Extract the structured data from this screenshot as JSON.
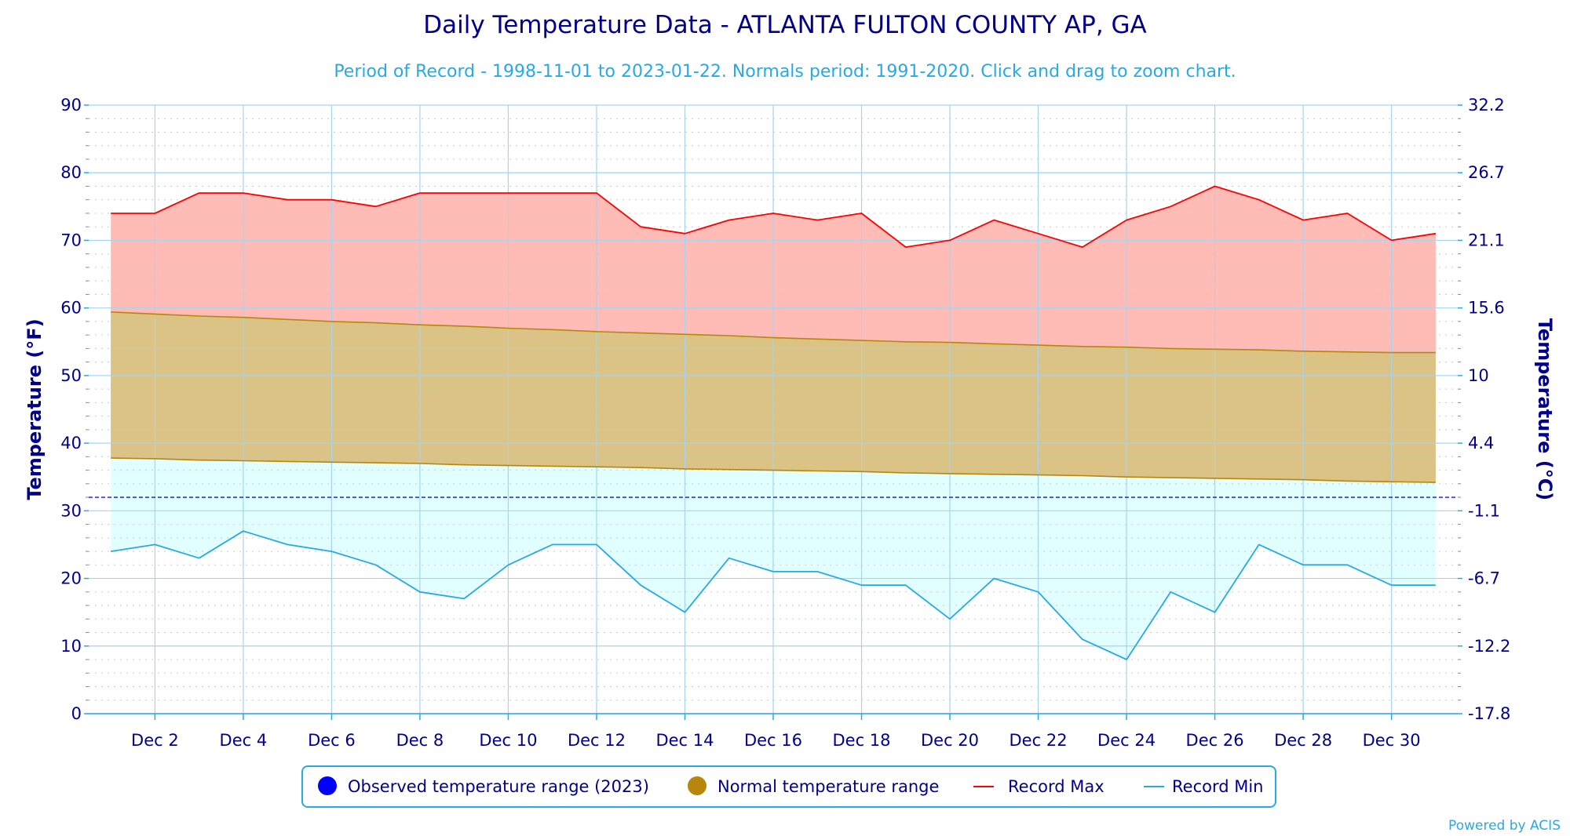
{
  "chart_data": {
    "type": "area",
    "title": "Daily Temperature Data - ATLANTA FULTON COUNTY AP, GA",
    "subtitle": "Period of Record - 1998-11-01 to 2023-01-22. Normals period: 1991-2020. Click and drag to zoom chart.",
    "ylabel": "Temperature (°F)",
    "y2label": "Temperature (°C)",
    "ylim": [
      0,
      90
    ],
    "yticks": [
      "0",
      "10",
      "20",
      "30",
      "40",
      "50",
      "60",
      "70",
      "80",
      "90"
    ],
    "y2ticks": [
      "-17.8",
      "-12.2",
      "-6.7",
      "-1.1",
      "4.4",
      "10",
      "15.6",
      "21.1",
      "26.7",
      "32.2"
    ],
    "x_days": [
      1,
      2,
      3,
      4,
      5,
      6,
      7,
      8,
      9,
      10,
      11,
      12,
      13,
      14,
      15,
      16,
      17,
      18,
      19,
      20,
      21,
      22,
      23,
      24,
      25,
      26,
      27,
      28,
      29,
      30,
      31
    ],
    "xticks": [
      "Dec 2",
      "Dec 4",
      "Dec 6",
      "Dec 8",
      "Dec 10",
      "Dec 12",
      "Dec 14",
      "Dec 16",
      "Dec 18",
      "Dec 20",
      "Dec 22",
      "Dec 24",
      "Dec 26",
      "Dec 28",
      "Dec 30"
    ],
    "freezing_line": 32,
    "grid": true,
    "legend_position": "bottom-center",
    "series": [
      {
        "name": "Record Max",
        "color": "#ff0000",
        "fill": "#ffbbb6",
        "values": [
          74,
          74,
          77,
          77,
          76,
          76,
          75,
          77,
          77,
          77,
          77,
          77,
          72,
          71,
          73,
          74,
          73,
          74,
          69,
          70,
          73,
          71,
          69,
          73,
          75,
          78,
          76,
          73,
          74,
          70,
          71
        ]
      },
      {
        "name": "Normal High",
        "color": "#b8860b",
        "fill": "#dbc385",
        "values": [
          59.4,
          59.1,
          58.8,
          58.6,
          58.3,
          58.0,
          57.8,
          57.5,
          57.3,
          57.0,
          56.8,
          56.5,
          56.3,
          56.1,
          55.9,
          55.6,
          55.4,
          55.2,
          55.0,
          54.9,
          54.7,
          54.5,
          54.3,
          54.2,
          54.0,
          53.9,
          53.8,
          53.6,
          53.5,
          53.4,
          53.4
        ]
      },
      {
        "name": "Normal Low",
        "color": "#b8860b",
        "values": [
          37.8,
          37.7,
          37.5,
          37.4,
          37.3,
          37.2,
          37.1,
          37.0,
          36.8,
          36.7,
          36.6,
          36.5,
          36.4,
          36.2,
          36.1,
          36.0,
          35.9,
          35.8,
          35.6,
          35.5,
          35.4,
          35.3,
          35.2,
          35.0,
          34.9,
          34.8,
          34.7,
          34.6,
          34.4,
          34.3,
          34.2
        ]
      },
      {
        "name": "Record Min",
        "color": "#29a9e3",
        "fill": "#e1ffff",
        "values": [
          24,
          25,
          23,
          27,
          25,
          24,
          22,
          18,
          17,
          22,
          25,
          25,
          19,
          15,
          23,
          21,
          21,
          19,
          19,
          14,
          20,
          18,
          11,
          8,
          18,
          15,
          25,
          22,
          22,
          19,
          19
        ]
      }
    ],
    "legend": [
      {
        "label": "Observed temperature range (2023)",
        "symbol": "dot",
        "color": "#0000ff"
      },
      {
        "label": "Normal temperature range",
        "symbol": "dot",
        "color": "#b8860b"
      },
      {
        "label": "Record Max",
        "symbol": "line",
        "color": "#ff0000"
      },
      {
        "label": "Record Min",
        "symbol": "line",
        "color": "#29a9e3"
      }
    ]
  },
  "credit": "Powered by ACIS"
}
